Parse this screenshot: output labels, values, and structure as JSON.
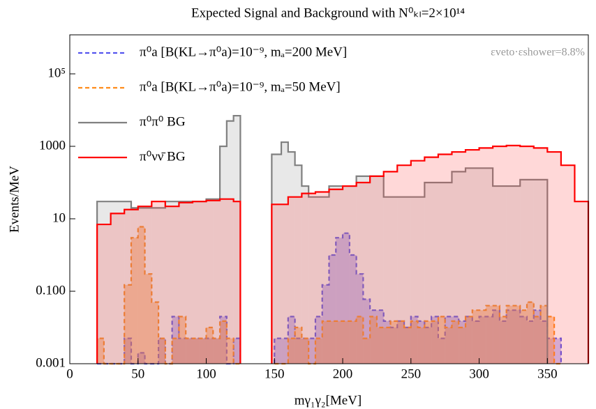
{
  "chart_data": {
    "type": "step-histogram",
    "title": "Expected Signal and Background with N⁰ₖₗ=2×10¹⁴",
    "xlabel": "mγ₁γ₂[MeV]",
    "ylabel": "Events/MeV",
    "annotation": "εveto·εshower=8.8%",
    "log_y": true,
    "legend": "top-left",
    "xlim": [
      0,
      380
    ],
    "xticks": [
      0,
      50,
      100,
      150,
      200,
      250,
      300,
      350
    ],
    "ylim": [
      0.001,
      1000000
    ],
    "yticks": [
      0.001,
      {
        "value": 0.1,
        "label": "0.100"
      },
      10,
      1000,
      {
        "value": 100000,
        "label": "10⁵"
      }
    ],
    "series": [
      {
        "name": "π⁰a [B(KL→π⁰a)=10⁻⁹, mₐ=200 MeV]",
        "color": "#5555ee",
        "fill": "rgba(110,90,230,0.35)",
        "dash": true,
        "bins": [
          20,
          25,
          30,
          35,
          40,
          45,
          50,
          55,
          60,
          65,
          70,
          75,
          80,
          85,
          90,
          95,
          100,
          105,
          110,
          115,
          120,
          125,
          150,
          155,
          160,
          165,
          170,
          175,
          180,
          185,
          190,
          195,
          200,
          205,
          210,
          215,
          220,
          225,
          230,
          235,
          240,
          245,
          250,
          255,
          260,
          265,
          270,
          275,
          280,
          285,
          290,
          295,
          300,
          305,
          310,
          315,
          320,
          325,
          330,
          335,
          340,
          345,
          350,
          355,
          360
        ],
        "values": [
          0.001,
          0.001,
          0.001,
          0.001,
          0.005,
          0.001,
          0.002,
          0.001,
          0.001,
          0.005,
          0.001,
          0.02,
          0.005,
          0.005,
          0.005,
          0.005,
          0.005,
          0.005,
          0.02,
          0.001,
          0.005,
          null,
          0.005,
          0.005,
          0.02,
          0.005,
          0.005,
          0.005,
          0.02,
          0.15,
          1,
          3,
          4,
          1,
          0.3,
          0.06,
          0.03,
          0.03,
          0.015,
          0.01,
          0.015,
          0.01,
          0.02,
          0.015,
          0.01,
          0.02,
          0.005,
          0.02,
          0.02,
          0.015,
          0.02,
          0.015,
          0.02,
          0.02,
          0.03,
          0.015,
          0.03,
          0.03,
          0.02,
          0.015,
          0.03,
          0.015,
          0.005,
          0.005
        ]
      },
      {
        "name": "π⁰a [B(KL→π⁰a)=10⁻⁹, mₐ=50 MeV]",
        "color": "#ff8c1a",
        "fill": "rgba(255,140,40,0.4)",
        "dash": true,
        "bins": [
          20,
          25,
          30,
          35,
          40,
          45,
          50,
          55,
          60,
          65,
          70,
          75,
          80,
          85,
          90,
          95,
          100,
          105,
          110,
          115,
          120,
          125,
          150,
          155,
          160,
          165,
          170,
          175,
          180,
          185,
          190,
          195,
          200,
          205,
          210,
          215,
          220,
          225,
          230,
          235,
          240,
          245,
          250,
          255,
          260,
          265,
          270,
          275,
          280,
          285,
          290,
          295,
          300,
          305,
          310,
          315,
          320,
          325,
          330,
          335,
          340,
          345,
          350,
          355,
          360
        ],
        "values": [
          0.005,
          0.001,
          0.001,
          0.001,
          0.15,
          3,
          6,
          0.3,
          0.05,
          0.005,
          0.001,
          0.005,
          0.02,
          0.005,
          0.005,
          0.005,
          0.01,
          0.005,
          0.015,
          0.005,
          0.001,
          null,
          0.001,
          0.001,
          0.005,
          0.01,
          0.005,
          0.001,
          0.005,
          0.015,
          0.015,
          0.015,
          0.015,
          0.015,
          0.02,
          0.005,
          0.02,
          0.01,
          0.01,
          0.015,
          0.015,
          0.01,
          0.015,
          0.01,
          0.015,
          0.015,
          0.02,
          0.01,
          0.015,
          0.01,
          0.02,
          0.03,
          0.03,
          0.04,
          0.04,
          0.02,
          0.04,
          0.04,
          0.03,
          0.05,
          0.02,
          0.04,
          0.02,
          0.001
        ]
      },
      {
        "name": "π⁰π⁰ BG",
        "color": "#808080",
        "fill": "rgba(150,150,150,0.22)",
        "dash": false,
        "bins": [
          20,
          45,
          70,
          100,
          105,
          110,
          115,
          120,
          125,
          148,
          155,
          160,
          165,
          170,
          175,
          190,
          210,
          230,
          260,
          280,
          290,
          310,
          330,
          350
        ],
        "values": [
          30,
          20,
          30,
          35,
          35,
          1000,
          5000,
          7000,
          null,
          600,
          1300,
          700,
          300,
          80,
          40,
          80,
          150,
          40,
          100,
          200,
          250,
          80,
          120
        ]
      },
      {
        "name": "π⁰νν̄ BG",
        "color": "#ff0000",
        "fill": "rgba(255,60,60,0.2)",
        "dash": false,
        "bins": [
          20,
          30,
          40,
          50,
          60,
          70,
          80,
          90,
          100,
          110,
          120,
          125,
          148,
          160,
          170,
          180,
          190,
          200,
          210,
          220,
          230,
          240,
          250,
          260,
          270,
          280,
          290,
          300,
          310,
          320,
          330,
          340,
          350,
          360,
          370,
          380
        ],
        "values": [
          7,
          14,
          18,
          22,
          30,
          22,
          28,
          30,
          32,
          35,
          30,
          null,
          25,
          40,
          50,
          55,
          65,
          80,
          100,
          150,
          200,
          300,
          400,
          500,
          600,
          700,
          800,
          900,
          1000,
          1050,
          1000,
          900,
          700,
          300,
          30
        ]
      }
    ]
  }
}
